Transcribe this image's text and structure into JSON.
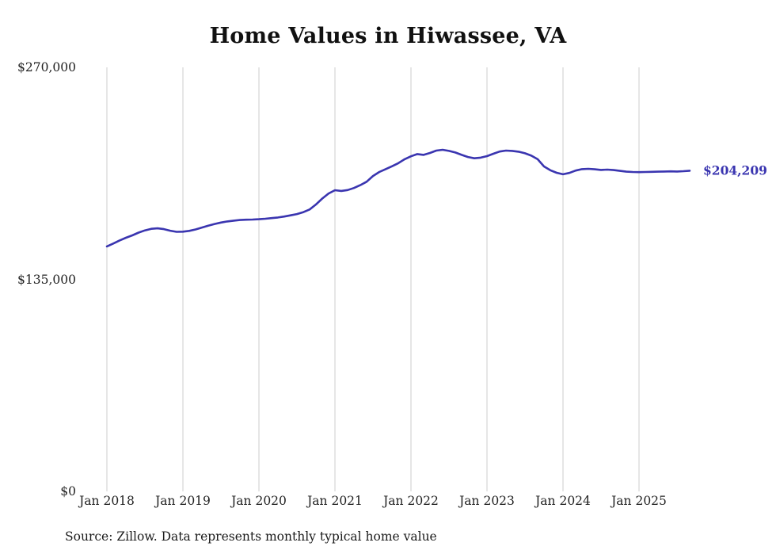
{
  "chart_data": {
    "type": "line",
    "title": "Home Values in Hiwassee, VA",
    "source_note": "Source: Zillow. Data represents monthly typical home value",
    "end_label": "$204,209",
    "end_value": 204209,
    "line_color": "#3a35b0",
    "gridline_color": "#cccccc",
    "ylim": [
      0,
      270000
    ],
    "y_ticks": [
      {
        "label": "$270,000",
        "value": 270000
      },
      {
        "label": "$135,000",
        "value": 135000
      },
      {
        "label": "$0",
        "value": 0
      }
    ],
    "x_tick_labels": [
      "Jan 2018",
      "Jan 2019",
      "Jan 2020",
      "Jan 2021",
      "Jan 2022",
      "Jan 2023",
      "Jan 2024",
      "Jan 2025"
    ],
    "x_start": "2018-01",
    "x_end": "2025-09",
    "x_interval": "monthly",
    "values": [
      156000,
      157800,
      159800,
      161500,
      163000,
      164800,
      166200,
      167200,
      167500,
      167000,
      166000,
      165300,
      165400,
      165900,
      166800,
      168000,
      169200,
      170300,
      171200,
      171900,
      172400,
      172800,
      173000,
      173100,
      173300,
      173600,
      174000,
      174400,
      175000,
      175800,
      176600,
      177800,
      179500,
      182700,
      186500,
      189700,
      191800,
      191300,
      191900,
      193200,
      195000,
      197200,
      200800,
      203400,
      205200,
      207000,
      209000,
      211500,
      213400,
      214800,
      214300,
      215500,
      217000,
      217500,
      216800,
      215800,
      214300,
      212900,
      212100,
      212500,
      213500,
      215000,
      216400,
      217000,
      216800,
      216300,
      215300,
      213800,
      211500,
      206900,
      204500,
      202900,
      201900,
      202800,
      204300,
      205200,
      205400,
      205100,
      204700,
      204900,
      204600,
      204100,
      203600,
      203400,
      203300,
      203400,
      203500,
      203600,
      203700,
      203800,
      203700,
      203900,
      204209
    ]
  }
}
